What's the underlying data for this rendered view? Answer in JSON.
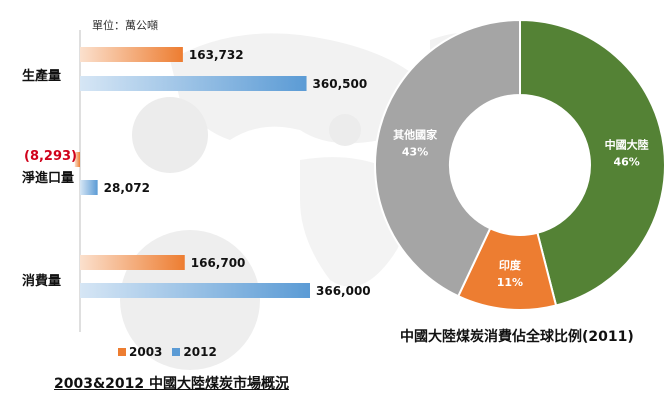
{
  "unit_label": "單位：萬公噸",
  "colors": {
    "y2003": "#ED7D31",
    "y2012": "#5B9BD5",
    "china": "#548235",
    "india": "#ED7D31",
    "others": "#A5A5A5",
    "negative": "#d0021b"
  },
  "chart_data": [
    {
      "type": "bar",
      "orientation": "horizontal",
      "title": "2003&2012 中國大陸煤炭市場概況",
      "categories": [
        "生產量",
        "淨進口量",
        "消費量"
      ],
      "series": [
        {
          "name": "2003",
          "values": [
            163732,
            -8293,
            166700
          ],
          "labels": [
            "163,732",
            "(8,293)",
            "166,700"
          ]
        },
        {
          "name": "2012",
          "values": [
            360500,
            28072,
            366000
          ],
          "labels": [
            "360,500",
            "28,072",
            "366,000"
          ]
        }
      ],
      "unit": "單位：萬公噸",
      "legend": "bottom"
    },
    {
      "type": "pie",
      "donut": true,
      "title": "中國大陸煤炭消費佔全球比例(2011)",
      "slices": [
        {
          "label": "中國大陸",
          "value": 46,
          "pct": "46%"
        },
        {
          "label": "印度",
          "value": 11,
          "pct": "11%"
        },
        {
          "label": "其他國家",
          "value": 43,
          "pct": "43%"
        }
      ]
    }
  ]
}
